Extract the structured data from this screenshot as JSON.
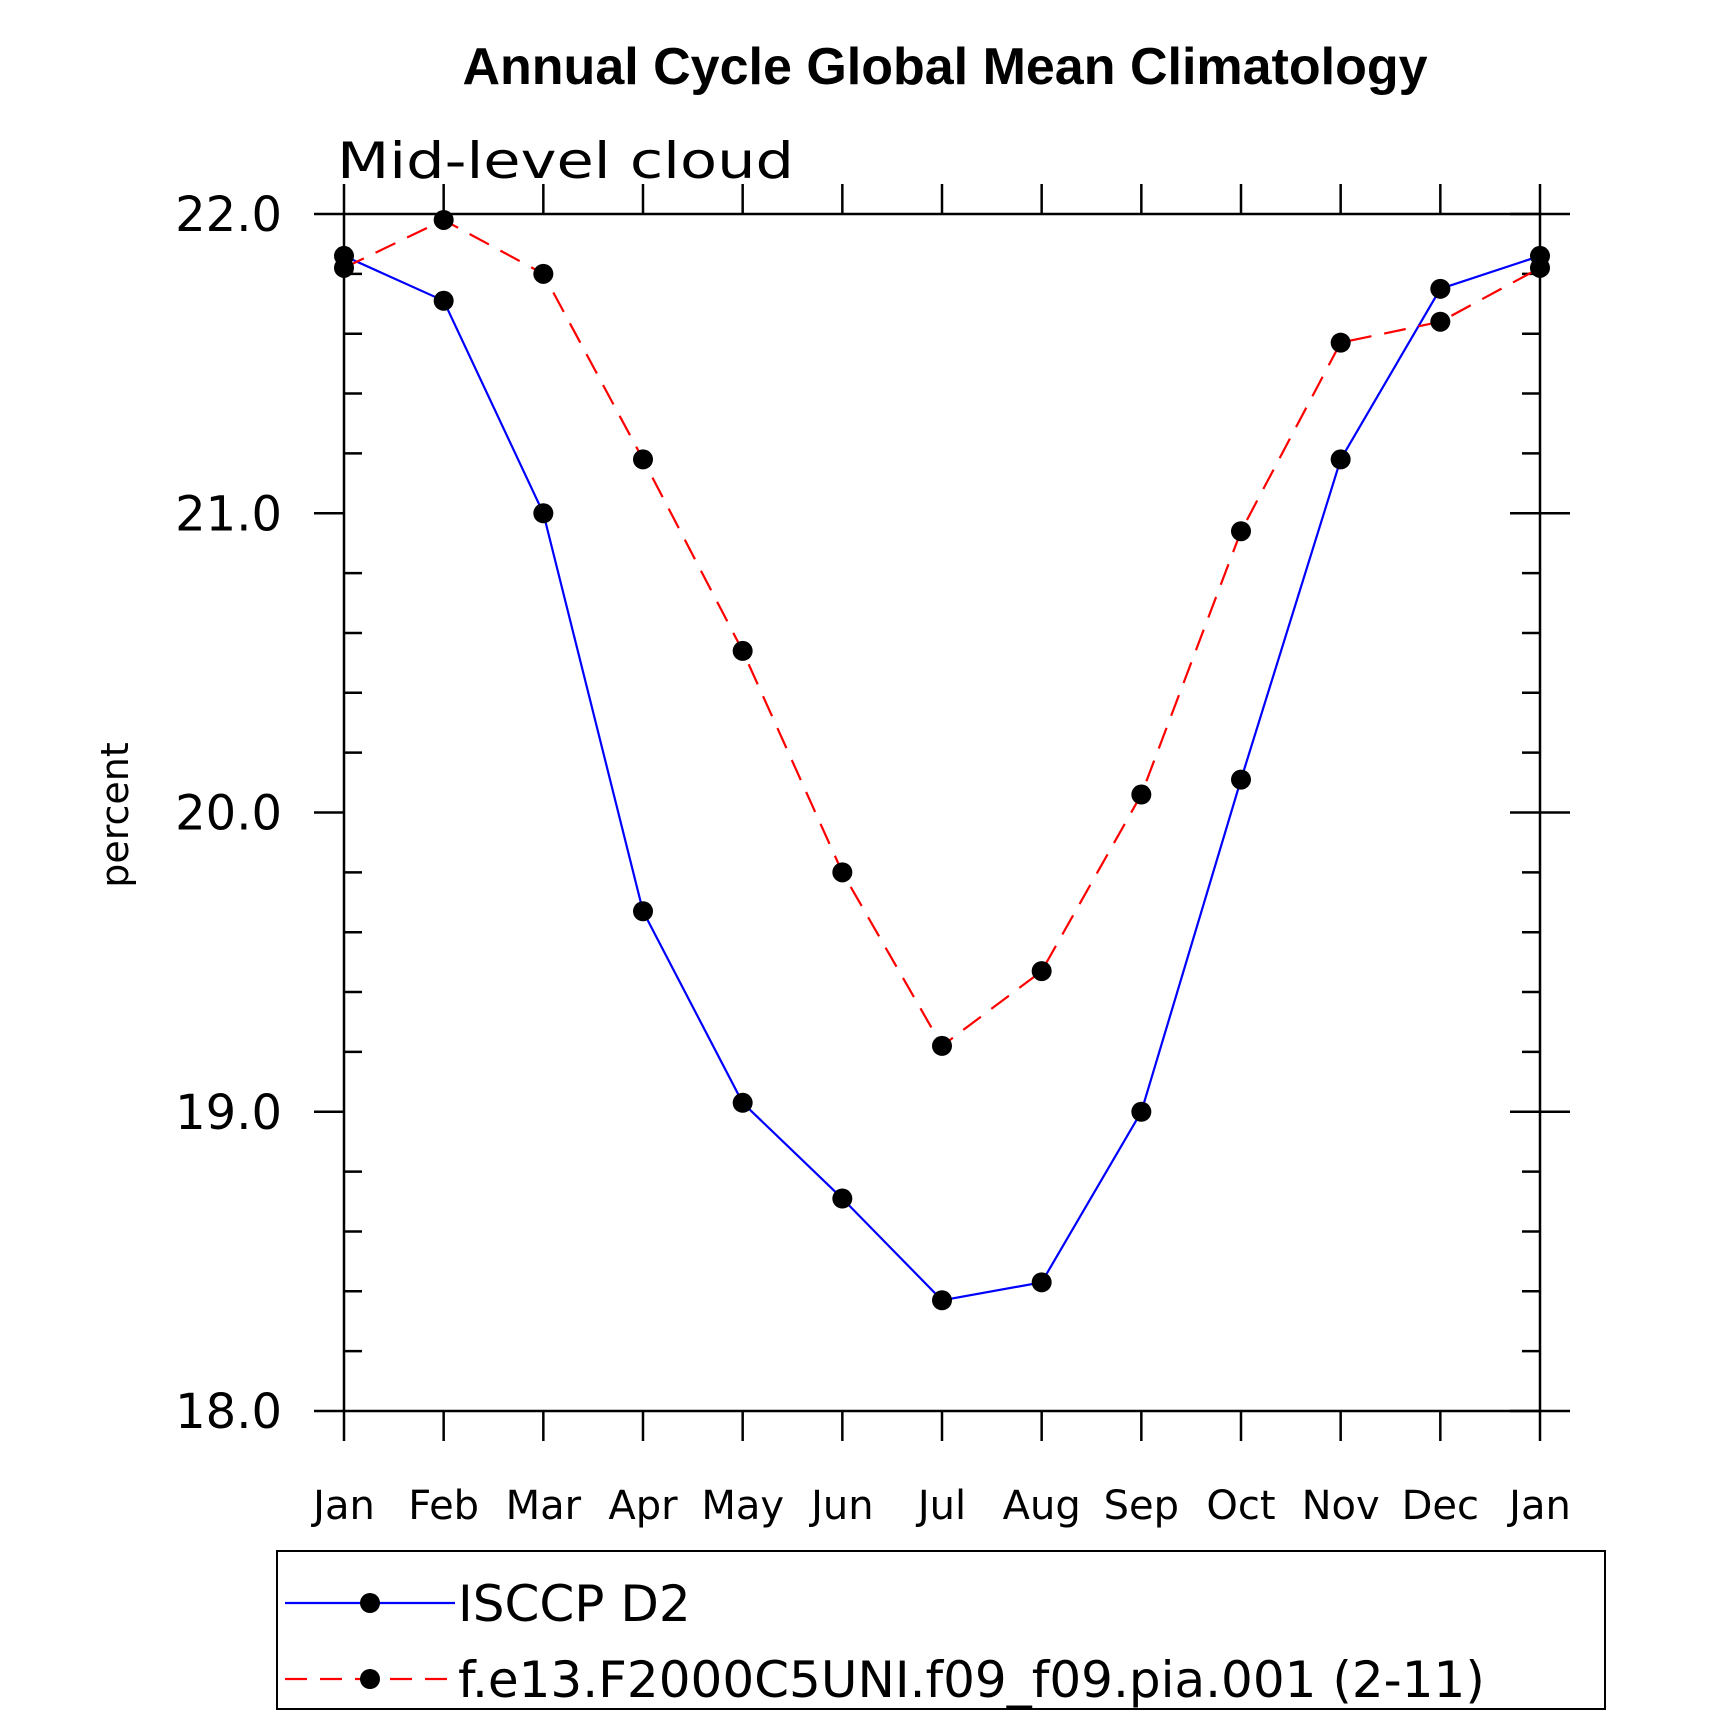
{
  "chart_data": {
    "type": "line",
    "title": "Annual Cycle Global Mean Climatology",
    "subtitle": "Mid-level cloud",
    "xlabel": "",
    "ylabel": "percent",
    "categories": [
      "Jan",
      "Feb",
      "Mar",
      "Apr",
      "May",
      "Jun",
      "Jul",
      "Aug",
      "Sep",
      "Oct",
      "Nov",
      "Dec",
      "Jan"
    ],
    "ylim": [
      18.0,
      22.0
    ],
    "yticks": [
      "18.0",
      "19.0",
      "20.0",
      "21.0",
      "22.0"
    ],
    "legend_position": "bottom",
    "series": [
      {
        "name": "ISCCP D2",
        "color": "#0000ff",
        "dash": "solid",
        "values": [
          21.86,
          21.71,
          21.0,
          19.67,
          19.03,
          18.71,
          18.37,
          18.43,
          19.0,
          20.11,
          21.18,
          21.75,
          21.86
        ]
      },
      {
        "name": "f.e13.F2000C5UNI.f09_f09.pia.001 (2-11)",
        "color": "#ff0000",
        "dash": "dashed",
        "values": [
          21.82,
          21.98,
          21.8,
          21.18,
          20.54,
          19.8,
          19.22,
          19.47,
          20.06,
          20.94,
          21.57,
          21.64,
          21.82
        ]
      }
    ]
  }
}
